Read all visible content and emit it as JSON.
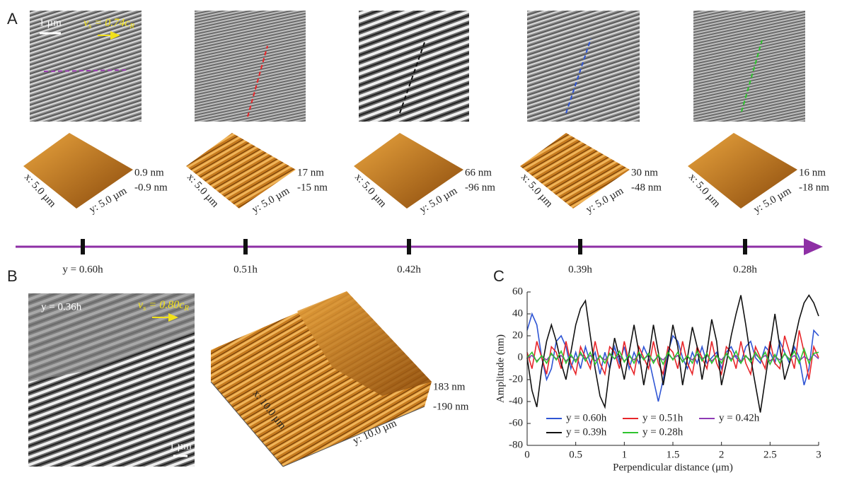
{
  "panel_a": {
    "label": "A",
    "scale_bar": "1 µm",
    "velocity": {
      "v": "v",
      "sub": "s",
      "eq": " = 0.74c",
      "sub2": "R"
    },
    "samples": [
      {
        "position": "y = 0.60h",
        "x_size": "x: 5.0 µm",
        "y_size": "y: 5.0 µm",
        "z_max": "0.9 nm",
        "z_min": "-0.9 nm"
      },
      {
        "position": "0.51h",
        "x_size": "x: 5.0 µm",
        "y_size": "y: 5.0 µm",
        "z_max": "17 nm",
        "z_min": "-15 nm"
      },
      {
        "position": "0.42h",
        "x_size": "x: 5.0 µm",
        "y_size": "y: 5.0 µm",
        "z_max": "66 nm",
        "z_min": "-96 nm"
      },
      {
        "position": "0.39h",
        "x_size": "x: 5.0 µm",
        "y_size": "y: 5.0 µm",
        "z_max": "30 nm",
        "z_min": "-48 nm"
      },
      {
        "position": "0.28h",
        "x_size": "x: 5.0 µm",
        "y_size": "y: 5.0 µm",
        "z_max": "16 nm",
        "z_min": "-18 nm"
      }
    ]
  },
  "panel_b": {
    "label": "B",
    "position": "y = 0.36h",
    "scale_bar": "1 µm",
    "velocity": {
      "v": "v",
      "sub": "s",
      "eq": " = 0.80c",
      "sub2": "R"
    },
    "x_size": "x: 10.0 µm",
    "y_size": "y: 10.0 µm",
    "z_max": "183 nm",
    "z_min": "-190 nm"
  },
  "chart_data": {
    "type": "line",
    "label": "C",
    "x_label": "Perpendicular distance (μm)",
    "y_label": "Amplitude (nm)",
    "xlim": [
      0,
      3
    ],
    "xticks": [
      0,
      0.5,
      1,
      1.5,
      2,
      2.5,
      3
    ],
    "ylim": [
      -80,
      60
    ],
    "yticks": [
      -80,
      -60,
      -40,
      -20,
      0,
      20,
      40,
      60
    ],
    "x": [
      0,
      0.05,
      0.1,
      0.15,
      0.2,
      0.25,
      0.3,
      0.35,
      0.4,
      0.45,
      0.5,
      0.55,
      0.6,
      0.65,
      0.7,
      0.75,
      0.8,
      0.85,
      0.9,
      0.95,
      1,
      1.05,
      1.1,
      1.15,
      1.2,
      1.25,
      1.3,
      1.35,
      1.4,
      1.45,
      1.5,
      1.55,
      1.6,
      1.65,
      1.7,
      1.75,
      1.8,
      1.85,
      1.9,
      1.95,
      2,
      2.05,
      2.1,
      2.15,
      2.2,
      2.25,
      2.3,
      2.35,
      2.4,
      2.45,
      2.5,
      2.55,
      2.6,
      2.65,
      2.7,
      2.75,
      2.8,
      2.85,
      2.9,
      2.95,
      3
    ],
    "series": [
      {
        "name": "y = 0.60h",
        "color": "#2f55d4",
        "values": [
          25,
          40,
          30,
          0,
          -20,
          -10,
          15,
          20,
          10,
          -10,
          5,
          -10,
          10,
          -5,
          5,
          -15,
          5,
          -10,
          10,
          -5,
          10,
          -10,
          5,
          -5,
          10,
          0,
          -20,
          -40,
          -20,
          5,
          20,
          15,
          0,
          -10,
          5,
          -5,
          10,
          -5,
          0,
          5,
          -10,
          5,
          10,
          0,
          -5,
          10,
          15,
          0,
          -5,
          10,
          5,
          -5,
          15,
          5,
          -5,
          10,
          0,
          -25,
          -10,
          25,
          20
        ]
      },
      {
        "name": "y = 0.51h",
        "color": "#e8262a",
        "values": [
          5,
          -10,
          15,
          0,
          -15,
          10,
          5,
          -10,
          15,
          -5,
          -15,
          10,
          0,
          -10,
          15,
          -5,
          -15,
          10,
          5,
          -10,
          15,
          -5,
          -15,
          10,
          0,
          -10,
          15,
          -5,
          -15,
          10,
          5,
          -10,
          15,
          -5,
          -15,
          10,
          0,
          -10,
          15,
          -5,
          -15,
          10,
          5,
          -10,
          15,
          -5,
          -15,
          10,
          0,
          -10,
          15,
          -5,
          -10,
          20,
          5,
          -10,
          25,
          5,
          -20,
          10,
          0
        ]
      },
      {
        "name": "y = 0.42h",
        "color": "#8e3ab5",
        "values": [
          0,
          2,
          -3,
          1,
          -2,
          3,
          -1,
          2,
          -3,
          1,
          -2,
          3,
          -1,
          2,
          -3,
          1,
          -2,
          3,
          -1,
          2,
          -3,
          1,
          -2,
          3,
          -1,
          2,
          -3,
          1,
          -2,
          3,
          -1,
          2,
          -3,
          1,
          -2,
          3,
          -1,
          2,
          -3,
          1,
          -2,
          3,
          -1,
          2,
          -3,
          1,
          -2,
          3,
          -1,
          2,
          -3,
          1,
          -2,
          3,
          -1,
          2,
          -3,
          1,
          -2,
          3,
          -1
        ]
      },
      {
        "name": "y = 0.39h",
        "color": "#111111",
        "values": [
          0,
          -30,
          -45,
          -10,
          15,
          30,
          15,
          -5,
          -20,
          5,
          30,
          45,
          52,
          20,
          -10,
          -35,
          -45,
          -10,
          18,
          0,
          -20,
          5,
          30,
          5,
          -25,
          0,
          30,
          5,
          -25,
          0,
          30,
          10,
          -25,
          0,
          28,
          10,
          -20,
          5,
          35,
          15,
          -25,
          -5,
          20,
          40,
          57,
          30,
          0,
          -25,
          -50,
          -20,
          10,
          40,
          10,
          -20,
          -5,
          15,
          35,
          50,
          57,
          50,
          38
        ]
      },
      {
        "name": "y = 0.28h",
        "color": "#2ec42e",
        "values": [
          0,
          5,
          -4,
          2,
          -5,
          4,
          -2,
          6,
          -5,
          3,
          -4,
          5,
          -3,
          5,
          -6,
          2,
          -5,
          4,
          -1,
          6,
          -4,
          3,
          -5,
          5,
          -2,
          4,
          -5,
          3,
          -6,
          5,
          -2,
          5,
          -4,
          2,
          -5,
          6,
          -3,
          4,
          -5,
          2,
          -5,
          4,
          -3,
          6,
          -5,
          2,
          -4,
          5,
          -2,
          5,
          -6,
          3,
          -5,
          4,
          -2,
          6,
          -5,
          8,
          -5,
          4,
          5
        ]
      }
    ]
  }
}
